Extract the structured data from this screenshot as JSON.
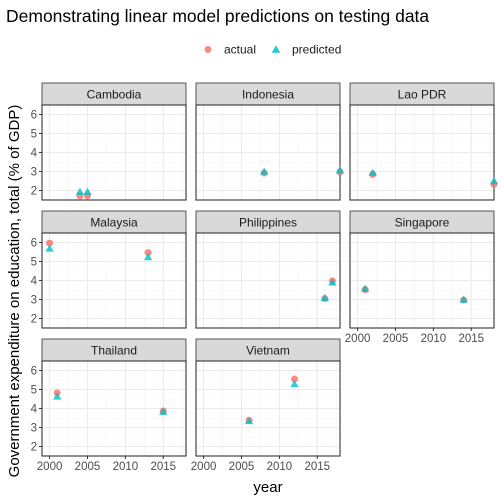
{
  "title": "Demonstrating linear model predictions on testing data",
  "colors": {
    "actual": "#F8766D",
    "predicted": "#00BFC4"
  },
  "chart_data": {
    "type": "scatter",
    "title": "Demonstrating linear model predictions on testing data",
    "xlabel": "year",
    "ylabel": "Government expenditure on education, total (% of GDP)",
    "xlim": [
      1999,
      2018
    ],
    "ylim": [
      1.5,
      6.5
    ],
    "x_ticks": [
      2000,
      2005,
      2010,
      2015
    ],
    "y_ticks": [
      2,
      3,
      4,
      5,
      6
    ],
    "legend": {
      "position": "top",
      "entries": [
        "actual",
        "predicted"
      ]
    },
    "grid": true,
    "facets": [
      {
        "name": "Cambodia",
        "actual": [
          [
            2004,
            1.72
          ],
          [
            2005,
            1.72
          ]
        ],
        "predicted": [
          [
            2004,
            1.92
          ],
          [
            2005,
            1.92
          ]
        ]
      },
      {
        "name": "Indonesia",
        "actual": [
          [
            2008,
            2.92
          ],
          [
            2018,
            2.98
          ]
        ],
        "predicted": [
          [
            2008,
            2.98
          ],
          [
            2018,
            3.05
          ]
        ]
      },
      {
        "name": "Lao PDR",
        "actual": [
          [
            2002,
            2.85
          ],
          [
            2018,
            2.32
          ]
        ],
        "predicted": [
          [
            2002,
            2.92
          ],
          [
            2018,
            2.48
          ]
        ]
      },
      {
        "name": "Malaysia",
        "actual": [
          [
            2000,
            5.97
          ],
          [
            2013,
            5.47
          ]
        ],
        "predicted": [
          [
            2000,
            5.67
          ],
          [
            2013,
            5.22
          ]
        ]
      },
      {
        "name": "Philippines",
        "actual": [
          [
            2016,
            3.05
          ],
          [
            2017,
            3.98
          ]
        ],
        "predicted": [
          [
            2016,
            3.07
          ],
          [
            2017,
            3.88
          ]
        ]
      },
      {
        "name": "Singapore",
        "actual": [
          [
            2001,
            3.52
          ],
          [
            2014,
            2.97
          ]
        ],
        "predicted": [
          [
            2001,
            3.56
          ],
          [
            2014,
            2.98
          ]
        ]
      },
      {
        "name": "Thailand",
        "actual": [
          [
            2001,
            4.82
          ],
          [
            2015,
            3.87
          ]
        ],
        "predicted": [
          [
            2001,
            4.62
          ],
          [
            2015,
            3.82
          ]
        ]
      },
      {
        "name": "Vietnam",
        "actual": [
          [
            2006,
            3.38
          ],
          [
            2012,
            5.55
          ]
        ],
        "predicted": [
          [
            2006,
            3.33
          ],
          [
            2012,
            5.27
          ]
        ]
      }
    ]
  }
}
